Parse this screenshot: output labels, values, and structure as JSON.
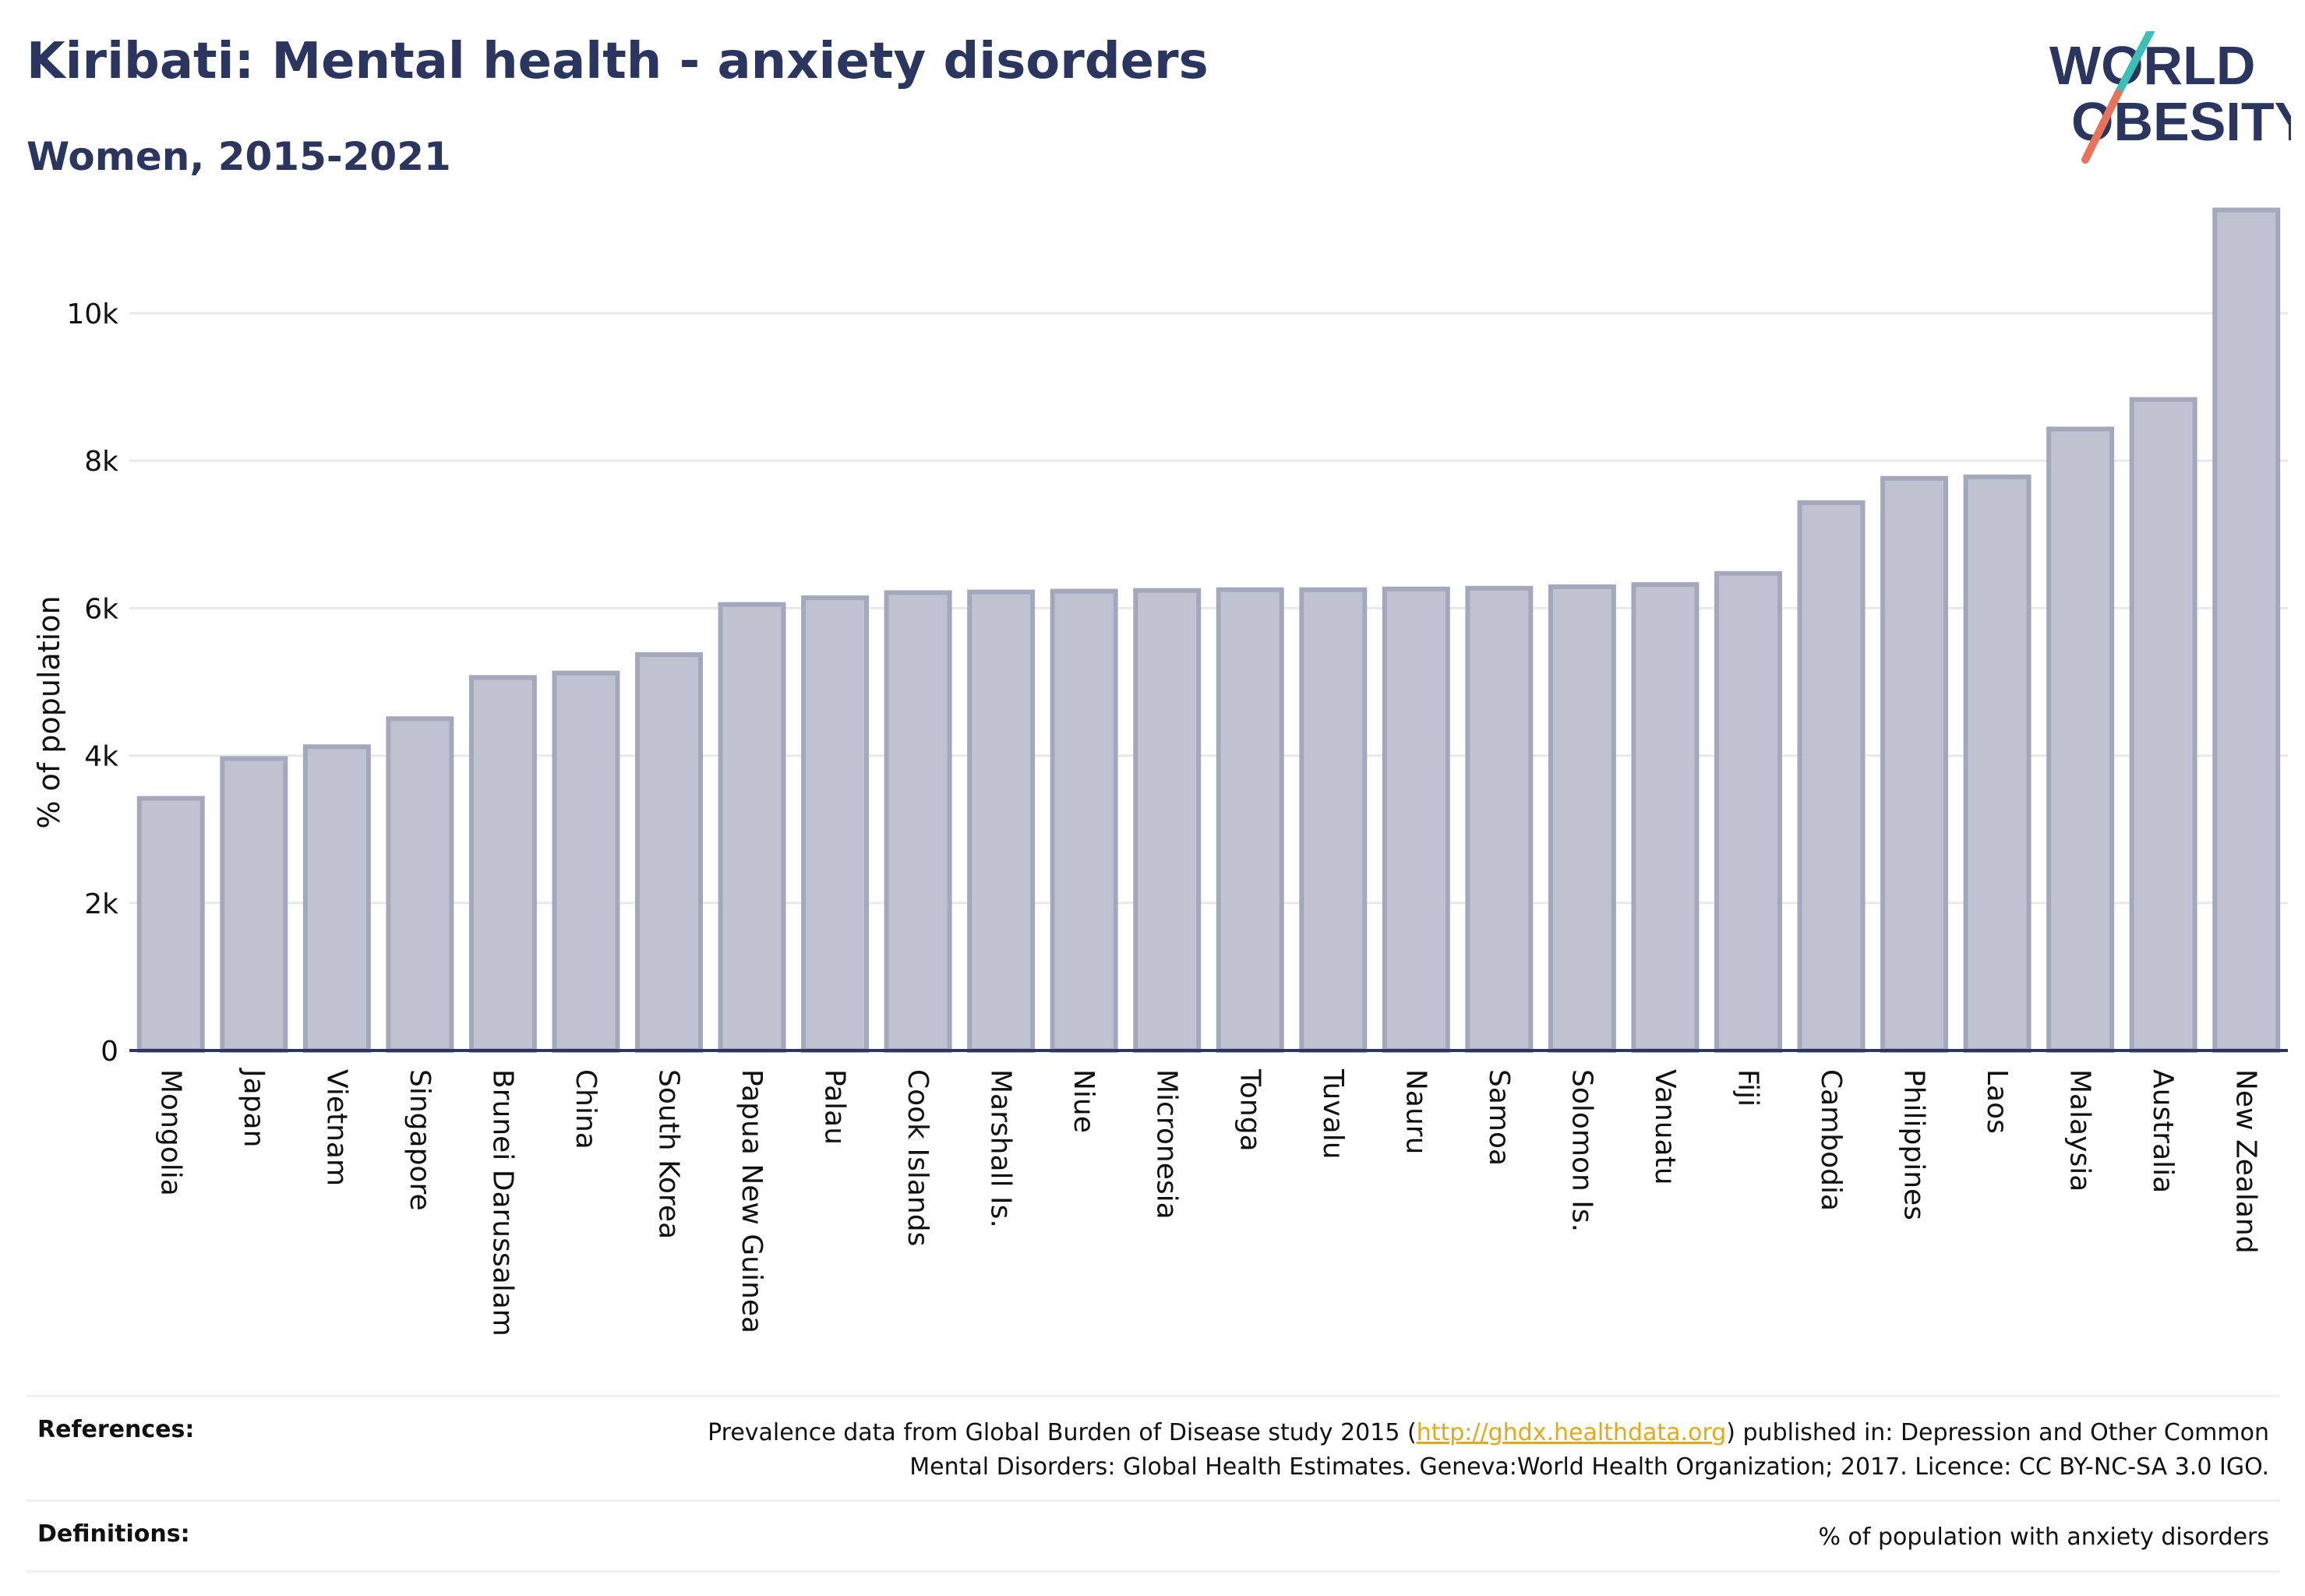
{
  "header": {
    "title": "Kiribati: Mental health - anxiety disorders",
    "subtitle": "Women, 2015-2021"
  },
  "logo": {
    "line1": "WORLD",
    "line2": "OBESITY",
    "colors": {
      "text": "#2a3560",
      "slash_teal": "#3dbfb8",
      "slash_coral": "#e8735a"
    }
  },
  "chart_data": {
    "type": "bar",
    "ylabel": "% of population",
    "xlabel": "",
    "ylim": [
      0,
      11500
    ],
    "yticks": [
      0,
      2000,
      4000,
      6000,
      8000,
      10000
    ],
    "ytick_labels": [
      "0",
      "2k",
      "4k",
      "6k",
      "8k",
      "10k"
    ],
    "grid": true,
    "bar_color": "#bfc3d1",
    "bar_edge_color": "#a3a8bd",
    "categories": [
      "Mongolia",
      "Japan",
      "Vietnam",
      "Singapore",
      "Brunei Darussalam",
      "China",
      "South Korea",
      "Papua New Guinea",
      "Palau",
      "Cook Islands",
      "Marshall Is.",
      "Niue",
      "Micronesia",
      "Tonga",
      "Tuvalu",
      "Nauru",
      "Samoa",
      "Solomon Is.",
      "Vanuatu",
      "Fiji",
      "Cambodia",
      "Philippines",
      "Laos",
      "Malaysia",
      "Australia",
      "New Zealand"
    ],
    "values": [
      3420,
      3960,
      4120,
      4500,
      5060,
      5120,
      5370,
      6050,
      6140,
      6210,
      6220,
      6230,
      6240,
      6250,
      6250,
      6260,
      6270,
      6290,
      6320,
      6470,
      7430,
      7760,
      7780,
      8430,
      8830,
      11400
    ]
  },
  "references": {
    "label": "References:",
    "text_before": "Prevalence data from Global Burden of Disease study 2015 (",
    "link": "http://ghdx.healthdata.org",
    "text_after": ") published in: Depression and Other Common",
    "line2": "Mental Disorders: Global Health Estimates. Geneva:World Health Organization; 2017. Licence: CC BY-NC-SA 3.0 IGO."
  },
  "definitions": {
    "label": "Definitions:",
    "text": "% of population with anxiety disorders"
  }
}
